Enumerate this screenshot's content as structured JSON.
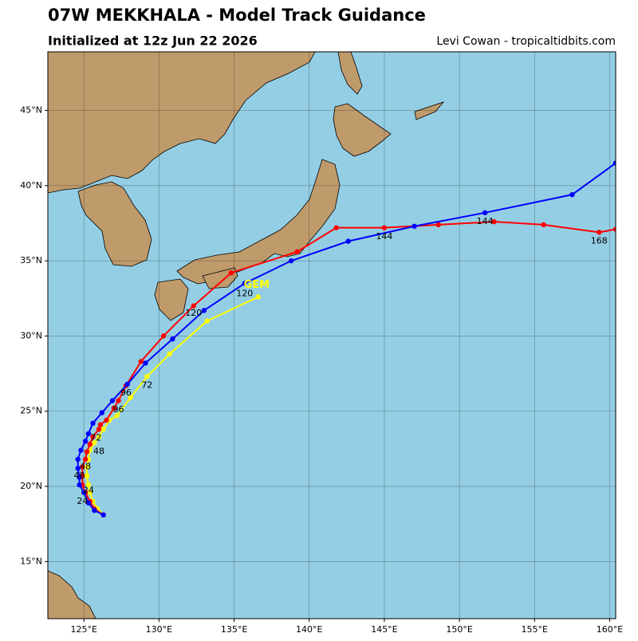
{
  "chart_data": {
    "type": "map",
    "title": "07W MEKKHALA - Model Track Guidance",
    "subtitle": "Initialized at 12z Jun 22 2026",
    "credit": "Levi Cowan - tropicaltidbits.com",
    "xlim": [
      122.6,
      160.4
    ],
    "ylim": [
      11.2,
      48.9
    ],
    "xticks": [
      {
        "value": 125,
        "label": "125°E"
      },
      {
        "value": 130,
        "label": "130°E"
      },
      {
        "value": 135,
        "label": "135°E"
      },
      {
        "value": 140,
        "label": "140°E"
      },
      {
        "value": 145,
        "label": "145°E"
      },
      {
        "value": 150,
        "label": "150°E"
      },
      {
        "value": 155,
        "label": "155°E"
      },
      {
        "value": 160,
        "label": "160°E"
      }
    ],
    "yticks": [
      {
        "value": 15,
        "label": "15°N"
      },
      {
        "value": 20,
        "label": "20°N"
      },
      {
        "value": 25,
        "label": "25°N"
      },
      {
        "value": 30,
        "label": "30°N"
      },
      {
        "value": 35,
        "label": "35°N"
      },
      {
        "value": 40,
        "label": "40°N"
      },
      {
        "value": 45,
        "label": "45°N"
      }
    ],
    "grid": true,
    "series": [
      {
        "color": "#ffff00",
        "x": [
          126.3,
          125.9,
          125.6,
          125.4,
          125.3,
          125.2,
          125.2,
          125.3,
          125.4,
          125.7,
          126.0,
          126.3,
          126.7,
          127.2,
          128.1,
          129.2,
          130.7,
          133.2,
          136.6
        ],
        "values": [
          18.1,
          18.5,
          19.0,
          19.6,
          20.1,
          20.7,
          21.3,
          21.8,
          22.4,
          22.9,
          23.3,
          23.8,
          24.4,
          24.7,
          25.9,
          27.3,
          28.8,
          31.0,
          32.6
        ]
      },
      {
        "color": "#ff0000",
        "x": [
          126.3,
          125.7,
          125.4,
          125.1,
          124.9,
          124.9,
          124.9,
          125.1,
          125.2,
          125.4,
          125.6,
          126.0,
          126.1,
          126.5,
          127.0,
          127.3,
          127.8,
          128.8,
          130.3,
          132.3,
          134.8,
          139.2,
          141.8,
          145.0,
          148.6,
          152.3,
          155.6,
          159.3,
          160.4
        ],
        "values": [
          18.1,
          18.5,
          19.0,
          19.6,
          20.1,
          20.7,
          21.3,
          21.8,
          22.3,
          22.8,
          23.3,
          23.8,
          24.1,
          24.4,
          25.2,
          25.7,
          26.7,
          28.3,
          30.0,
          32.0,
          34.2,
          35.6,
          37.2,
          37.2,
          37.4,
          37.6,
          37.4,
          36.9,
          37.1
        ]
      },
      {
        "color": "#0000ff",
        "x": [
          126.3,
          125.7,
          125.3,
          125.0,
          124.7,
          124.7,
          124.6,
          124.6,
          124.8,
          125.1,
          125.3,
          125.6,
          126.2,
          126.9,
          127.9,
          129.1,
          130.9,
          133.0,
          135.7,
          138.8,
          142.6,
          147.0,
          151.7,
          157.5,
          160.4
        ],
        "values": [
          18.1,
          18.4,
          18.9,
          19.6,
          20.1,
          20.6,
          21.2,
          21.8,
          22.4,
          23.0,
          23.5,
          24.2,
          24.9,
          25.7,
          26.8,
          28.2,
          29.8,
          31.7,
          33.5,
          35.0,
          36.3,
          37.3,
          38.2,
          39.4,
          41.5
        ]
      }
    ],
    "annotations": [
      {
        "text": "24",
        "lon": 125.3,
        "lat": 19.7
      },
      {
        "text": "24",
        "lon": 124.9,
        "lat": 19.0
      },
      {
        "text": "48",
        "lon": 124.7,
        "lat": 20.7
      },
      {
        "text": "48",
        "lon": 125.1,
        "lat": 21.3
      },
      {
        "text": "48",
        "lon": 126.0,
        "lat": 22.3
      },
      {
        "text": "72",
        "lon": 125.8,
        "lat": 23.2
      },
      {
        "text": "72",
        "lon": 129.2,
        "lat": 26.7
      },
      {
        "text": "96",
        "lon": 127.8,
        "lat": 26.2
      },
      {
        "text": "96",
        "lon": 127.3,
        "lat": 25.1
      },
      {
        "text": "120",
        "lon": 135.7,
        "lat": 32.8
      },
      {
        "text": "120",
        "lon": 132.3,
        "lat": 31.5
      },
      {
        "text": "144",
        "lon": 145.0,
        "lat": 36.6
      },
      {
        "text": "144",
        "lon": 151.7,
        "lat": 37.6
      },
      {
        "text": "168",
        "lon": 159.3,
        "lat": 36.3
      },
      {
        "text": "GEM",
        "lon": 136.5,
        "lat": 33.4,
        "color": "#ffff00"
      }
    ]
  }
}
